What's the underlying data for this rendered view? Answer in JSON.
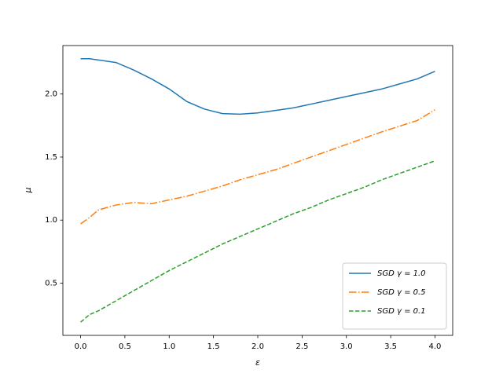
{
  "chart_data": {
    "type": "line",
    "xlabel": "ε",
    "ylabel": "μ",
    "x": [
      0,
      0.1,
      0.2,
      0.4,
      0.6,
      0.8,
      1.0,
      1.2,
      1.4,
      1.6,
      1.8,
      2.0,
      2.2,
      2.4,
      2.6,
      2.8,
      3.0,
      3.2,
      3.4,
      3.6,
      3.8,
      4.0
    ],
    "series": [
      {
        "name": "SGD γ = 1.0",
        "color": "#1f77b4",
        "linestyle": "solid",
        "values": [
          2.28,
          2.28,
          2.27,
          2.25,
          2.19,
          2.12,
          2.04,
          1.94,
          1.88,
          1.845,
          1.84,
          1.85,
          1.87,
          1.89,
          1.92,
          1.95,
          1.98,
          2.01,
          2.04,
          2.08,
          2.12,
          2.18
        ]
      },
      {
        "name": "SGD γ = 0.5",
        "color": "#ff7f0e",
        "linestyle": "dashdot",
        "values": [
          0.97,
          1.02,
          1.08,
          1.12,
          1.14,
          1.13,
          1.16,
          1.19,
          1.23,
          1.27,
          1.32,
          1.36,
          1.4,
          1.45,
          1.5,
          1.55,
          1.6,
          1.65,
          1.7,
          1.745,
          1.79,
          1.875
        ]
      },
      {
        "name": "SGD γ = 0.1",
        "color": "#2ca02c",
        "linestyle": "dashed",
        "values": [
          0.19,
          0.25,
          0.28,
          0.36,
          0.44,
          0.52,
          0.6,
          0.67,
          0.74,
          0.81,
          0.87,
          0.93,
          0.99,
          1.05,
          1.1,
          1.16,
          1.21,
          1.26,
          1.32,
          1.37,
          1.42,
          1.47
        ]
      }
    ],
    "xlim": [
      -0.2,
      4.2
    ],
    "xticks": [
      {
        "value": 0,
        "label": "0.0"
      },
      0.5,
      {
        "value": 1,
        "label": "1.0"
      },
      1.5,
      {
        "value": 2,
        "label": "2.0"
      },
      2.5,
      {
        "value": 3,
        "label": "3.0"
      },
      3.5,
      {
        "value": 4,
        "label": "4.0"
      }
    ],
    "ylim": [
      0.0855,
      2.3845
    ],
    "yticks": [
      0.5,
      {
        "value": 1,
        "label": "1.0"
      },
      1.5,
      {
        "value": 2,
        "label": "2.0"
      }
    ],
    "grid": false,
    "legend": "lower right"
  }
}
